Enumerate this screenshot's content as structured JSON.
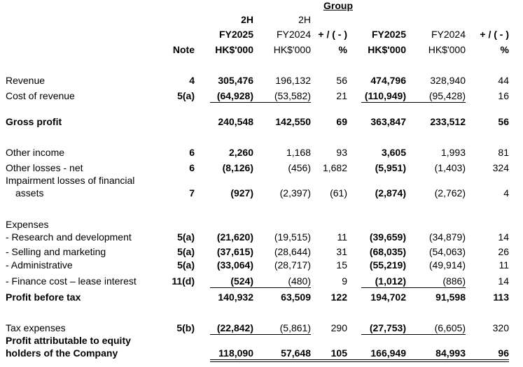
{
  "group_title": "Group",
  "headers": {
    "note": "Note",
    "col1": [
      "2H",
      "FY2025",
      "HK$'000"
    ],
    "col2": [
      "2H",
      "FY2024",
      "HK$'000"
    ],
    "col3": [
      "+ / ( - )",
      "%"
    ],
    "col4": [
      "FY2025",
      "HK$'000"
    ],
    "col5": [
      "FY2024",
      "HK$'000"
    ],
    "col6": [
      "+ / ( - )",
      "%"
    ]
  },
  "rows": [
    {
      "label": "Revenue",
      "note": "4",
      "v": [
        "305,476",
        "196,132",
        "56",
        "474,796",
        "328,940",
        "44"
      ]
    },
    {
      "label": "Cost of revenue",
      "note": "5(a)",
      "v": [
        "(64,928)",
        "(53,582)",
        "21",
        "(110,949)",
        "(95,428)",
        "16"
      ]
    },
    {
      "label": "Gross profit",
      "note": "",
      "v": [
        "240,548",
        "142,550",
        "69",
        "363,847",
        "233,512",
        "56"
      ]
    },
    {
      "label": "Other income",
      "note": "6",
      "v": [
        "2,260",
        "1,168",
        "93",
        "3,605",
        "1,993",
        "81"
      ]
    },
    {
      "label": "Other losses - net",
      "note": "6",
      "v": [
        "(8,126)",
        "(456)",
        "1,682",
        "(5,951)",
        "(1,403)",
        "324"
      ]
    },
    {
      "label": "Impairment losses of financial\nassets",
      "note": "7",
      "v": [
        "(927)",
        "(2,397)",
        "(61)",
        "(2,874)",
        "(2,762)",
        "4"
      ]
    },
    {
      "label": "Expenses",
      "note": "",
      "v": [
        "",
        "",
        "",
        "",
        "",
        ""
      ]
    },
    {
      "label": "- Research and development",
      "note": "5(a)",
      "v": [
        "(21,620)",
        "(19,515)",
        "11",
        "(39,659)",
        "(34,879)",
        "14"
      ]
    },
    {
      "label": "- Selling and marketing",
      "note": "5(a)",
      "v": [
        "(37,615)",
        "(28,644)",
        "31",
        "(68,035)",
        "(54,063)",
        "26"
      ]
    },
    {
      "label": "- Administrative",
      "note": "5(a)",
      "v": [
        "(33,064)",
        "(28,717)",
        "15",
        "(55,219)",
        "(49,914)",
        "11"
      ]
    },
    {
      "label": "- Finance cost – lease interest",
      "note": "11(d)",
      "v": [
        "(524)",
        "(480)",
        "9",
        "(1,012)",
        "(886)",
        "14"
      ]
    },
    {
      "label": "Profit before tax",
      "note": "",
      "v": [
        "140,932",
        "63,509",
        "122",
        "194,702",
        "91,598",
        "113"
      ]
    },
    {
      "label": "Tax expenses",
      "note": "5(b)",
      "v": [
        "(22,842)",
        "(5,861)",
        "290",
        "(27,753)",
        "(6,605)",
        "320"
      ]
    },
    {
      "label": "Profit attributable to equity\nholders of the Company",
      "note": "",
      "v": [
        "118,090",
        "57,648",
        "105",
        "166,949",
        "84,993",
        "96"
      ]
    }
  ]
}
